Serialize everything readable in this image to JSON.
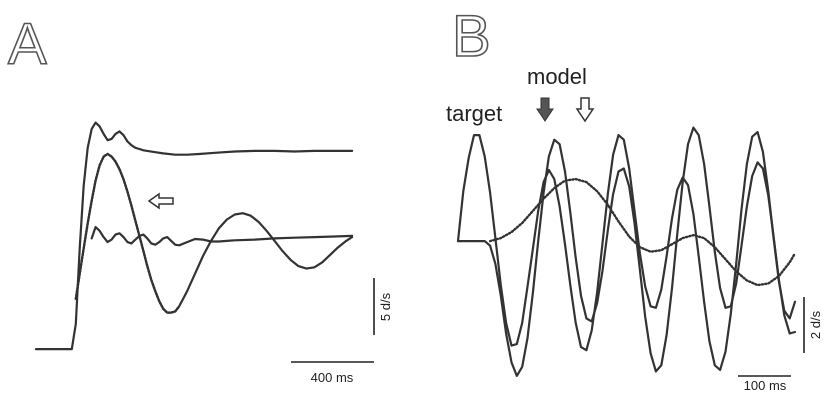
{
  "panels": {
    "a": {
      "letter": "A"
    },
    "b": {
      "letter": "B"
    }
  },
  "annotations": {
    "target": "target",
    "model": "model"
  },
  "scalebars": {
    "a_vertical": "5 d/s",
    "a_horizontal": "400 ms",
    "b_vertical": "2 d/s",
    "b_horizontal": "100 ms"
  },
  "colors": {
    "trace": "#333333",
    "filled_arrow": "#555555",
    "open_arrow": "#ffffff"
  },
  "chart_data": [
    {
      "panel": "A",
      "type": "line",
      "title": "",
      "xlabel": "",
      "ylabel": "",
      "grid": false,
      "units": {
        "x": "ms",
        "y": "d/s"
      },
      "xlim": [
        0,
        1700
      ],
      "ylim": [
        -1.5,
        19
      ],
      "series": [
        {
          "style": "solid",
          "x": [
            0,
            180,
            200,
            220,
            240,
            260,
            280,
            300,
            320,
            340,
            360,
            380,
            400,
            420,
            440,
            460,
            480,
            500,
            520,
            540,
            560,
            600,
            640,
            700,
            760,
            820,
            900,
            1000,
            1100,
            1200,
            1300,
            1400,
            1500,
            1590
          ],
          "y": [
            0,
            0,
            2,
            8,
            13,
            16,
            17.5,
            18,
            17.7,
            17.1,
            16.6,
            16.7,
            17.1,
            17.3,
            17.0,
            16.5,
            16.2,
            16.0,
            15.9,
            15.8,
            15.75,
            15.65,
            15.55,
            15.45,
            15.45,
            15.5,
            15.6,
            15.7,
            15.75,
            15.75,
            15.7,
            15.75,
            15.75,
            15.75
          ]
        },
        {
          "style": "dotted",
          "x": [
            200,
            230,
            260,
            280,
            300,
            320,
            340,
            360,
            380,
            400,
            420,
            440,
            460,
            480,
            500,
            520,
            540,
            560,
            580,
            600,
            620,
            640,
            660,
            680,
            700,
            720
          ],
          "y": [
            4,
            7,
            10,
            11.8,
            13.4,
            14.6,
            15.3,
            15.5,
            15.3,
            14.9,
            14.3,
            13.5,
            12.5,
            11.4,
            10.2,
            9.0,
            7.8,
            6.6,
            5.5,
            4.6,
            3.8,
            3.2,
            2.9,
            2.9,
            3.0,
            3.4
          ]
        },
        {
          "style": "solid",
          "x": [
            200,
            230,
            260,
            280,
            300,
            320,
            340,
            360,
            380,
            400,
            420,
            440,
            460,
            480,
            500,
            520,
            540,
            560,
            580,
            600,
            620,
            640,
            660,
            680,
            700,
            720,
            760,
            800,
            840,
            880,
            920,
            960,
            1000,
            1040,
            1080,
            1120,
            1160,
            1200,
            1240,
            1280,
            1320,
            1360,
            1400,
            1440,
            1480,
            1520,
            1560,
            1590
          ],
          "y": [
            4,
            7,
            10,
            11.8,
            13.4,
            14.6,
            15.3,
            15.5,
            15.3,
            14.9,
            14.3,
            13.5,
            12.5,
            11.4,
            10.2,
            9.0,
            7.8,
            6.6,
            5.5,
            4.6,
            3.8,
            3.2,
            2.9,
            2.9,
            3.0,
            3.4,
            4.6,
            6.0,
            7.4,
            8.6,
            9.6,
            10.3,
            10.7,
            10.8,
            10.6,
            10.1,
            9.4,
            8.6,
            7.8,
            7.1,
            6.6,
            6.4,
            6.5,
            6.9,
            7.5,
            8.1,
            8.6,
            8.9
          ]
        },
        {
          "style": "solid",
          "x": [
            280,
            300,
            320,
            340,
            360,
            380,
            400,
            420,
            440,
            460,
            480,
            500,
            520,
            540,
            560,
            580,
            600,
            620,
            640,
            660,
            680,
            700,
            720,
            760,
            800,
            840,
            880,
            920,
            960,
            1000,
            1100,
            1200,
            1300,
            1400,
            1500,
            1590
          ],
          "y": [
            8.8,
            9.7,
            9.4,
            8.9,
            8.5,
            8.7,
            9.1,
            9.2,
            8.9,
            8.5,
            8.4,
            8.7,
            9.0,
            9.1,
            8.8,
            8.4,
            8.3,
            8.5,
            8.8,
            8.9,
            8.6,
            8.3,
            8.25,
            8.5,
            8.75,
            8.7,
            8.55,
            8.55,
            8.6,
            8.65,
            8.7,
            8.8,
            8.85,
            8.9,
            8.95,
            9.0
          ]
        }
      ]
    },
    {
      "panel": "B",
      "type": "line",
      "title": "",
      "xlabel": "",
      "ylabel": "",
      "grid": false,
      "units": {
        "x": "ms",
        "y": "d/s"
      },
      "xlim": [
        0,
        630
      ],
      "ylim": [
        -9.5,
        8
      ],
      "series": [
        {
          "style": "solid",
          "x": [
            0,
            10,
            20,
            30,
            40,
            50,
            60,
            70,
            80,
            90,
            100,
            110,
            120,
            130,
            140,
            150,
            160,
            170,
            180,
            190,
            200,
            210,
            220,
            230,
            240,
            250,
            260,
            270,
            280,
            290,
            300,
            310,
            320,
            330,
            340,
            350,
            360,
            370,
            380,
            390,
            400,
            410,
            420,
            430,
            440,
            450,
            460,
            470,
            480,
            490,
            500,
            510,
            520,
            530,
            540,
            550,
            560,
            570,
            580,
            590,
            600,
            610,
            620,
            630
          ],
          "y": [
            0,
            3.3,
            5.5,
            7.0,
            7.0,
            5.6,
            3.2,
            0.2,
            -2.9,
            -5.4,
            -6.9,
            -6.8,
            -5.4,
            -3.0,
            -0.5,
            2.0,
            3.9,
            4.7,
            4.1,
            2.3,
            -0.2,
            -2.9,
            -5.4,
            -7.0,
            -7.2,
            -5.9,
            -3.4,
            -0.2,
            3.1,
            5.7,
            7.0,
            6.7,
            4.8,
            2.0,
            -0.8,
            -3.0,
            -4.3,
            -4.4,
            -3.2,
            -1.0,
            1.5,
            3.4,
            4.2,
            3.7,
            1.8,
            -1.0,
            -4.0,
            -6.6,
            -8.2,
            -8.5,
            -7.3,
            -4.8,
            -1.5,
            2.1,
            5.1,
            6.9,
            7.2,
            5.9,
            3.3,
            0.2,
            -2.7,
            -4.6,
            -5.1,
            -4.0
          ]
        },
        {
          "style": "solid",
          "x": [
            0,
            10,
            20,
            30,
            40,
            50,
            60,
            70,
            80,
            90,
            100,
            110,
            120,
            130,
            140,
            150,
            160,
            170,
            180,
            190,
            200,
            210,
            220,
            230,
            240,
            250,
            260,
            270,
            280,
            290,
            300,
            310,
            320,
            330,
            340,
            350,
            360,
            370,
            380,
            390,
            400,
            410,
            420,
            430,
            440,
            450,
            460,
            470,
            480,
            490,
            500,
            510,
            520,
            530,
            540,
            550,
            560,
            570,
            580,
            590,
            600,
            610,
            620,
            630
          ],
          "y": [
            0,
            0,
            0,
            0,
            0,
            0,
            -0.3,
            -1.5,
            -3.6,
            -6.1,
            -8.0,
            -8.9,
            -8.3,
            -6.4,
            -3.4,
            0.0,
            3.2,
            5.6,
            6.7,
            6.4,
            4.6,
            1.9,
            -1.1,
            -3.6,
            -5.1,
            -5.3,
            -4.1,
            -2.0,
            0.7,
            3.1,
            4.6,
            4.8,
            3.6,
            1.2,
            -1.9,
            -5.0,
            -7.4,
            -8.6,
            -8.2,
            -6.2,
            -3.1,
            0.5,
            3.9,
            6.4,
            7.5,
            7.0,
            5.1,
            2.3,
            -0.7,
            -3.1,
            -4.4,
            -4.3,
            -2.8,
            -0.3,
            2.3,
            4.3,
            5.2,
            4.8,
            3.0,
            0.3,
            -2.6,
            -4.9,
            -6.1,
            -6.0
          ]
        },
        {
          "style": "dotted",
          "x": [
            60,
            80,
            100,
            120,
            140,
            160,
            180,
            200,
            220,
            240,
            260,
            280,
            300,
            320,
            340,
            360,
            380,
            400,
            420,
            440,
            460,
            480,
            500,
            520,
            540,
            560,
            580,
            600,
            620,
            630
          ],
          "y": [
            0,
            0.2,
            0.6,
            1.2,
            2.0,
            2.8,
            3.5,
            4.0,
            4.1,
            3.9,
            3.3,
            2.4,
            1.3,
            0.3,
            -0.4,
            -0.7,
            -0.6,
            -0.2,
            0.2,
            0.4,
            0.2,
            -0.4,
            -1.2,
            -2.0,
            -2.6,
            -2.9,
            -2.8,
            -2.3,
            -1.4,
            -0.8
          ]
        }
      ]
    }
  ]
}
